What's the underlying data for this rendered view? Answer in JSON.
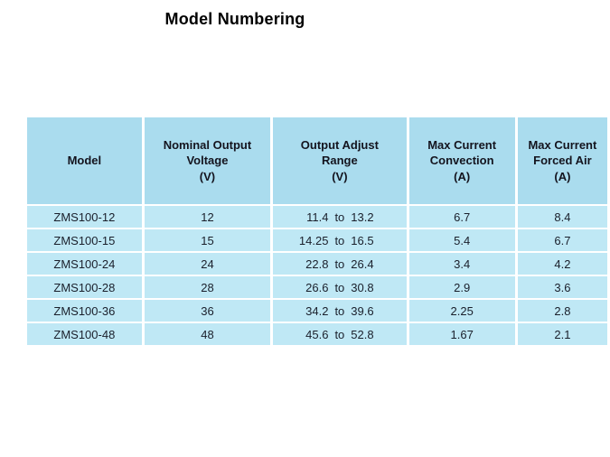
{
  "page": {
    "title": "Model Numbering"
  },
  "colors": {
    "header_bg": "#aadcee",
    "row_bg": "#bfe8f5",
    "text": "#1a1f2b",
    "background": "#ffffff"
  },
  "table": {
    "range_separator": "to",
    "columns": [
      {
        "label": "Model"
      },
      {
        "label": "Nominal Output\nVoltage\n(V)"
      },
      {
        "label": "Output Adjust\nRange\n(V)"
      },
      {
        "label": "Max Current\nConvection\n(A)"
      },
      {
        "label": "Max Current\nForced Air\n(A)"
      }
    ],
    "rows": [
      {
        "model": "ZMS100-12",
        "nominal_voltage": "12",
        "adjust_min": "11.4",
        "adjust_max": "13.2",
        "max_current_convection": "6.7",
        "max_current_forced_air": "8.4"
      },
      {
        "model": "ZMS100-15",
        "nominal_voltage": "15",
        "adjust_min": "14.25",
        "adjust_max": "16.5",
        "max_current_convection": "5.4",
        "max_current_forced_air": "6.7"
      },
      {
        "model": "ZMS100-24",
        "nominal_voltage": "24",
        "adjust_min": "22.8",
        "adjust_max": "26.4",
        "max_current_convection": "3.4",
        "max_current_forced_air": "4.2"
      },
      {
        "model": "ZMS100-28",
        "nominal_voltage": "28",
        "adjust_min": "26.6",
        "adjust_max": "30.8",
        "max_current_convection": "2.9",
        "max_current_forced_air": "3.6"
      },
      {
        "model": "ZMS100-36",
        "nominal_voltage": "36",
        "adjust_min": "34.2",
        "adjust_max": "39.6",
        "max_current_convection": "2.25",
        "max_current_forced_air": "2.8"
      },
      {
        "model": "ZMS100-48",
        "nominal_voltage": "48",
        "adjust_min": "45.6",
        "adjust_max": "52.8",
        "max_current_convection": "1.67",
        "max_current_forced_air": "2.1"
      }
    ]
  }
}
